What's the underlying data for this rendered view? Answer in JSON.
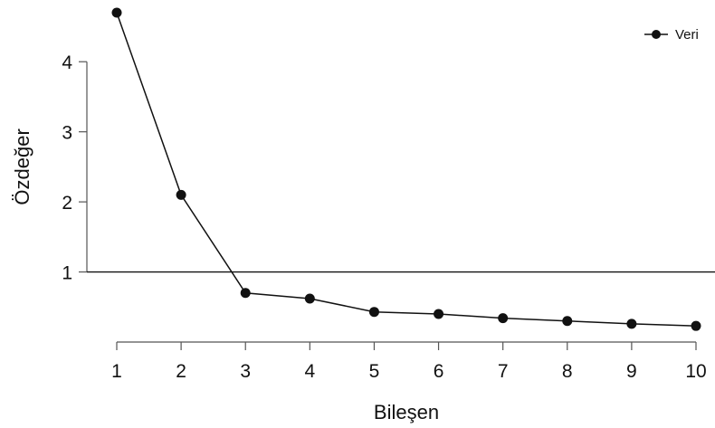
{
  "chart_data": {
    "type": "line",
    "xlabel": "Bileşen",
    "ylabel": "Özdeğer",
    "x": [
      1,
      2,
      3,
      4,
      5,
      6,
      7,
      8,
      9,
      10
    ],
    "series": [
      {
        "name": "Veri",
        "values": [
          4.7,
          2.1,
          0.7,
          0.62,
          0.43,
          0.4,
          0.34,
          0.3,
          0.26,
          0.23
        ]
      }
    ],
    "reference_line_y": 1,
    "xlim": [
      1,
      10
    ],
    "ylim": [
      0,
      4.7
    ],
    "x_ticks": [
      1,
      2,
      3,
      4,
      5,
      6,
      7,
      8,
      9,
      10
    ],
    "y_ticks": [
      1,
      2,
      3,
      4
    ],
    "legend_position": "top-right",
    "grid": false,
    "color": "#111111"
  }
}
